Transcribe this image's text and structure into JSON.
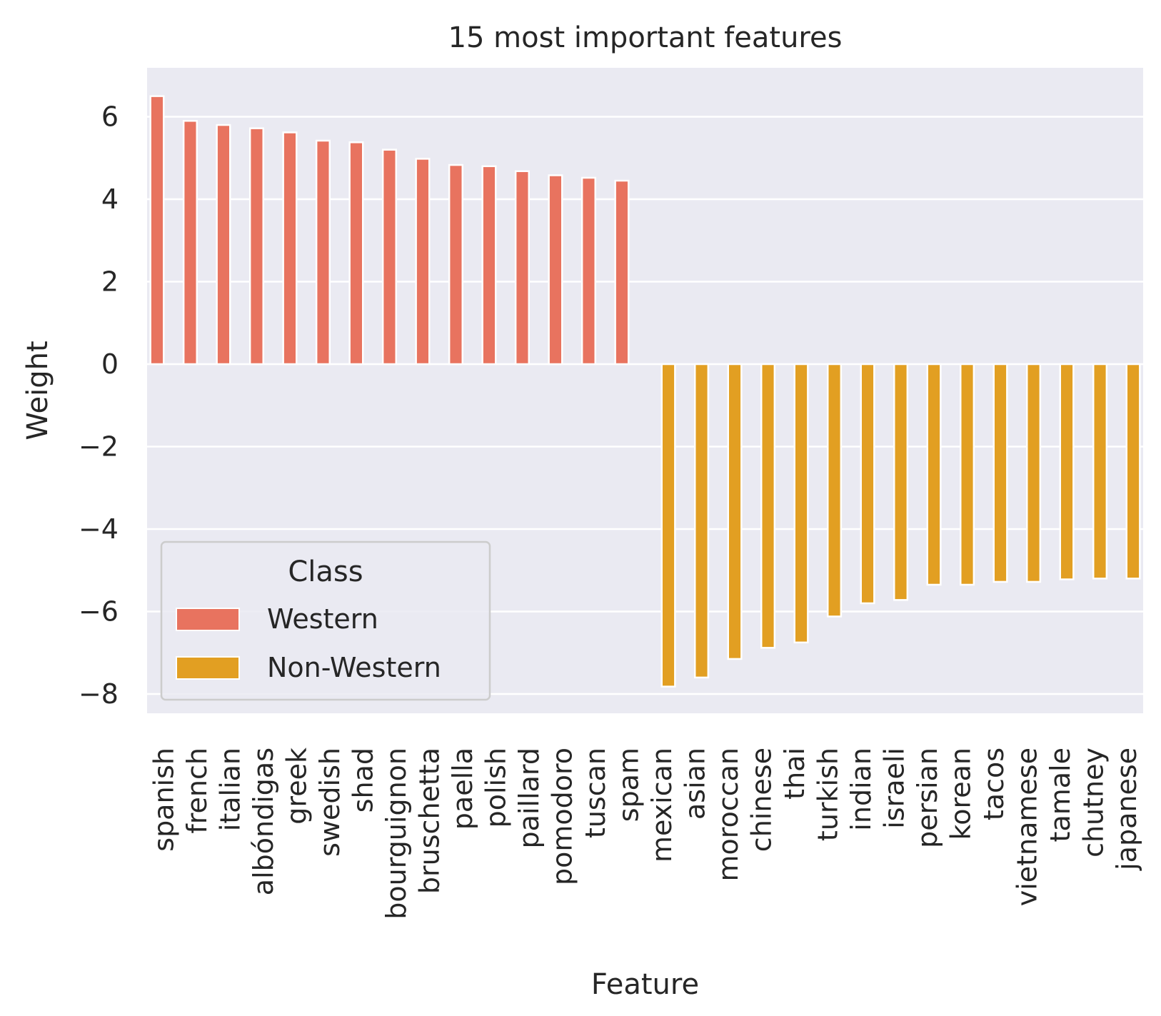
{
  "chart_data": {
    "type": "bar",
    "title": "15 most important features",
    "xlabel": "Feature",
    "ylabel": "Weight",
    "ylim": [
      -8.5,
      7.2
    ],
    "yticks": [
      6,
      4,
      2,
      0,
      -2,
      -4,
      -6,
      -8
    ],
    "ytick_labels": [
      "6",
      "4",
      "2",
      "0",
      "−2",
      "−4",
      "−6",
      "−8"
    ],
    "grid": true,
    "background": "#eaeaf2",
    "categories": [
      "spanish",
      "french",
      "italian",
      "albóndigas",
      "greek",
      "swedish",
      "shad",
      "bourguignon",
      "bruschetta",
      "paella",
      "polish",
      "paillard",
      "pomodoro",
      "tuscan",
      "spam",
      "mexican",
      "asian",
      "moroccan",
      "chinese",
      "thai",
      "turkish",
      "indian",
      "israeli",
      "persian",
      "korean",
      "tacos",
      "vietnamese",
      "tamale",
      "chutney",
      "japanese"
    ],
    "series": [
      {
        "name": "Western",
        "color": "#e8735f",
        "values": [
          6.5,
          5.9,
          5.8,
          5.72,
          5.62,
          5.42,
          5.38,
          5.2,
          4.98,
          4.83,
          4.8,
          4.68,
          4.58,
          4.52,
          4.45,
          null,
          null,
          null,
          null,
          null,
          null,
          null,
          null,
          null,
          null,
          null,
          null,
          null,
          null,
          null
        ]
      },
      {
        "name": "Non-Western",
        "color": "#e29f22",
        "values": [
          null,
          null,
          null,
          null,
          null,
          null,
          null,
          null,
          null,
          null,
          null,
          null,
          null,
          null,
          null,
          -7.82,
          -7.6,
          -7.15,
          -6.88,
          -6.75,
          -6.12,
          -5.8,
          -5.72,
          -5.35,
          -5.35,
          -5.28,
          -5.28,
          -5.22,
          -5.2,
          -5.2
        ]
      }
    ],
    "legend": {
      "title": "Class",
      "position": "lower-left",
      "entries": [
        "Western",
        "Non-Western"
      ]
    }
  }
}
